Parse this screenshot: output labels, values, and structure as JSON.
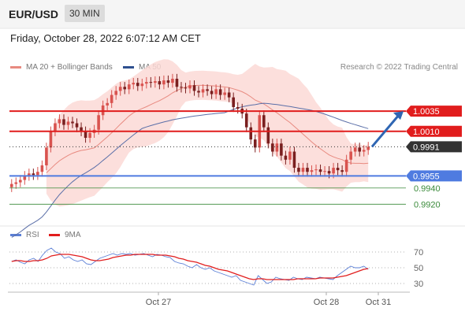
{
  "header": {
    "pair": "EUR/USD",
    "timeframe": "30 MIN",
    "datetime": "Friday, October 28, 2022 6:07:12 AM CET",
    "credit": "Research © 2022 Trading Central"
  },
  "legend": {
    "ma20": "MA 20 + Bollinger Bands",
    "ma50": "MA 50",
    "rsi": "RSI",
    "ma9": "9MA"
  },
  "colors": {
    "bollinger_fill": "#fbd9d6",
    "ma20": "#e88a80",
    "ma50": "#5b6fa8",
    "resistance": "#e11d1d",
    "support": "#4f7be0",
    "target": "#3a8a3a",
    "current_price": "#333333",
    "bull_candle": "#d9534f",
    "bear_candle": "#7a1f1f",
    "rsi": "#5b7fd6",
    "ma9": "#e11d1d",
    "arrow": "#2f66b3"
  },
  "chart_data": [
    {
      "type": "candlestick",
      "title": "EUR/USD 30 MIN",
      "x_ticks": [
        "Oct 27",
        "Oct 28",
        "Oct 31"
      ],
      "ylim": [
        0.9895,
        1.0075
      ],
      "levels": [
        {
          "label": "1.0035",
          "value": 1.0035,
          "kind": "resistance"
        },
        {
          "label": "1.0010",
          "value": 1.001,
          "kind": "resistance"
        },
        {
          "label": "0.9991",
          "value": 0.9991,
          "kind": "current"
        },
        {
          "label": "0.9955",
          "value": 0.9955,
          "kind": "pivot"
        },
        {
          "label": "0.9940",
          "value": 0.994,
          "kind": "support"
        },
        {
          "label": "0.9920",
          "value": 0.992,
          "kind": "support"
        }
      ],
      "forecast_arrow": {
        "from": 0.9991,
        "to": 1.0035
      },
      "closes": [
        0.9945,
        0.9947,
        0.995,
        0.9955,
        0.9958,
        0.9956,
        0.996,
        0.9968,
        0.999,
        1.001,
        1.002,
        1.0025,
        1.0018,
        1.0022,
        1.002,
        1.0015,
        1.001,
        1.0002,
        1.0008,
        1.0012,
        1.003,
        1.0042,
        1.0045,
        1.0055,
        1.006,
        1.0065,
        1.0062,
        1.0068,
        1.007,
        1.0066,
        1.0069,
        1.0071,
        1.007,
        1.0072,
        1.0068,
        1.0073,
        1.007,
        1.0075,
        1.0065,
        1.0064,
        1.0063,
        1.0067,
        1.006,
        1.0058,
        1.0062,
        1.006,
        1.0056,
        1.0062,
        1.0055,
        1.0058,
        1.0052,
        1.004,
        1.0038,
        1.0032,
        1.0015,
        1.0,
        0.999,
        1.003,
        1.0015,
        0.9995,
        0.9985,
        0.9995,
        0.998,
        0.9975,
        0.9985,
        0.9965,
        0.996,
        0.9965,
        0.996,
        0.9962,
        0.9963,
        0.996,
        0.9961,
        0.9958,
        0.9965,
        0.9962,
        0.996,
        0.9975,
        0.9985,
        0.999,
        0.9985,
        0.9987,
        0.9991
      ]
    },
    {
      "type": "line",
      "title": "RSI",
      "y_ticks": [
        70,
        50,
        30
      ],
      "ylim": [
        20,
        85
      ],
      "series": [
        {
          "name": "RSI",
          "values": [
            58,
            60,
            57,
            55,
            60,
            62,
            58,
            66,
            72,
            75,
            70,
            68,
            62,
            64,
            60,
            58,
            60,
            55,
            54,
            58,
            62,
            64,
            66,
            68,
            66,
            68,
            67,
            68,
            66,
            67,
            68,
            66,
            64,
            67,
            66,
            64,
            63,
            58,
            56,
            55,
            52,
            50,
            54,
            50,
            48,
            50,
            46,
            44,
            42,
            40,
            38,
            40,
            34,
            32,
            30,
            28,
            40,
            35,
            30,
            32,
            38,
            36,
            35,
            34,
            38,
            36,
            35,
            38,
            37,
            36,
            38,
            37,
            36,
            35,
            40,
            44,
            48,
            52,
            50,
            50,
            52,
            48
          ]
        },
        {
          "name": "9MA",
          "values": [
            58,
            59,
            59,
            58,
            58,
            59,
            59,
            60,
            62,
            65,
            66,
            67,
            67,
            67,
            66,
            65,
            64,
            62,
            60,
            59,
            59,
            60,
            61,
            63,
            64,
            65,
            66,
            66,
            67,
            67,
            67,
            67,
            67,
            66,
            66,
            66,
            65,
            64,
            62,
            61,
            59,
            58,
            57,
            55,
            53,
            52,
            50,
            48,
            47,
            46,
            44,
            42,
            40,
            38,
            36,
            35,
            36,
            36,
            35,
            35,
            35,
            35,
            35,
            35,
            35,
            36,
            36,
            36,
            36,
            36,
            37,
            37,
            37,
            37,
            38,
            39,
            40,
            42,
            44,
            46,
            48,
            49
          ]
        }
      ]
    }
  ]
}
